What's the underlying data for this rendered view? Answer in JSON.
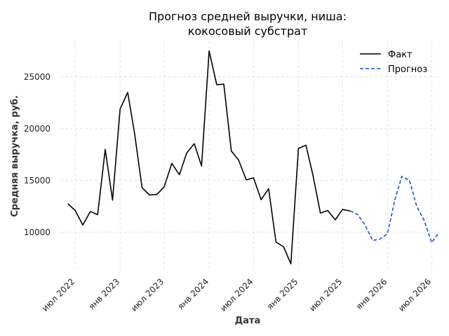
{
  "chart_data": {
    "type": "line",
    "title_lines": [
      "Прогноз средней выручки, ниша:",
      "кокосовый субстрат"
    ],
    "xlabel": "Дата",
    "ylabel": "Средняя выручка, руб.",
    "xlim": [
      "2022-05-01",
      "2026-08-01"
    ],
    "ylim": [
      6200,
      28500
    ],
    "x_ticks": [
      {
        "date": "2022-07-01",
        "label": "июл 2022"
      },
      {
        "date": "2023-01-01",
        "label": "янв 2023"
      },
      {
        "date": "2023-07-01",
        "label": "июл 2023"
      },
      {
        "date": "2024-01-01",
        "label": "янв 2024"
      },
      {
        "date": "2024-07-01",
        "label": "июл 2024"
      },
      {
        "date": "2025-01-01",
        "label": "янв 2025"
      },
      {
        "date": "2025-07-01",
        "label": "июл 2025"
      },
      {
        "date": "2026-01-01",
        "label": "янв 2026"
      },
      {
        "date": "2026-07-01",
        "label": "июл 2026"
      }
    ],
    "y_ticks": [
      {
        "value": 10000,
        "label": "10000"
      },
      {
        "value": 15000,
        "label": "15000"
      },
      {
        "value": 20000,
        "label": "20000"
      },
      {
        "value": 25000,
        "label": "25000"
      }
    ],
    "grid": true,
    "legend_position": "top-right",
    "series": [
      {
        "name": "Факт",
        "color": "#000000",
        "style": "solid",
        "x": [
          "2022-06-01",
          "2022-07-01",
          "2022-08-01",
          "2022-09-01",
          "2022-10-01",
          "2022-11-01",
          "2022-12-01",
          "2023-01-01",
          "2023-02-01",
          "2023-03-01",
          "2023-04-01",
          "2023-05-01",
          "2023-06-01",
          "2023-07-01",
          "2023-08-01",
          "2023-09-01",
          "2023-10-01",
          "2023-11-01",
          "2023-12-01",
          "2024-01-01",
          "2024-02-01",
          "2024-03-01",
          "2024-04-01",
          "2024-05-01",
          "2024-06-01",
          "2024-07-01",
          "2024-08-01",
          "2024-09-01",
          "2024-10-01",
          "2024-11-01",
          "2024-12-01",
          "2025-01-01",
          "2025-02-01",
          "2025-03-01",
          "2025-04-01",
          "2025-05-01",
          "2025-06-01",
          "2025-07-01",
          "2025-08-01"
        ],
        "values": [
          12750,
          12100,
          10700,
          12000,
          11700,
          18000,
          13100,
          21900,
          23500,
          19600,
          14300,
          13600,
          13650,
          14400,
          16650,
          15550,
          17650,
          18550,
          16400,
          27500,
          24250,
          24300,
          17850,
          16950,
          15050,
          15250,
          13150,
          14200,
          9050,
          8600,
          6950,
          18100,
          18400,
          15550,
          11850,
          12100,
          11200,
          12200,
          12050
        ]
      },
      {
        "name": "Прогноз",
        "color": "#1f4fd1",
        "style": "dashed",
        "x": [
          "2025-08-01",
          "2025-09-01",
          "2025-10-01",
          "2025-11-01",
          "2025-12-01",
          "2026-01-01",
          "2026-02-01",
          "2026-03-01",
          "2026-04-01",
          "2026-05-01",
          "2026-06-01",
          "2026-07-01",
          "2026-08-01"
        ],
        "values": [
          12050,
          11700,
          10700,
          9200,
          9350,
          9850,
          13200,
          15400,
          15000,
          12500,
          11100,
          9000,
          10000
        ]
      }
    ]
  }
}
